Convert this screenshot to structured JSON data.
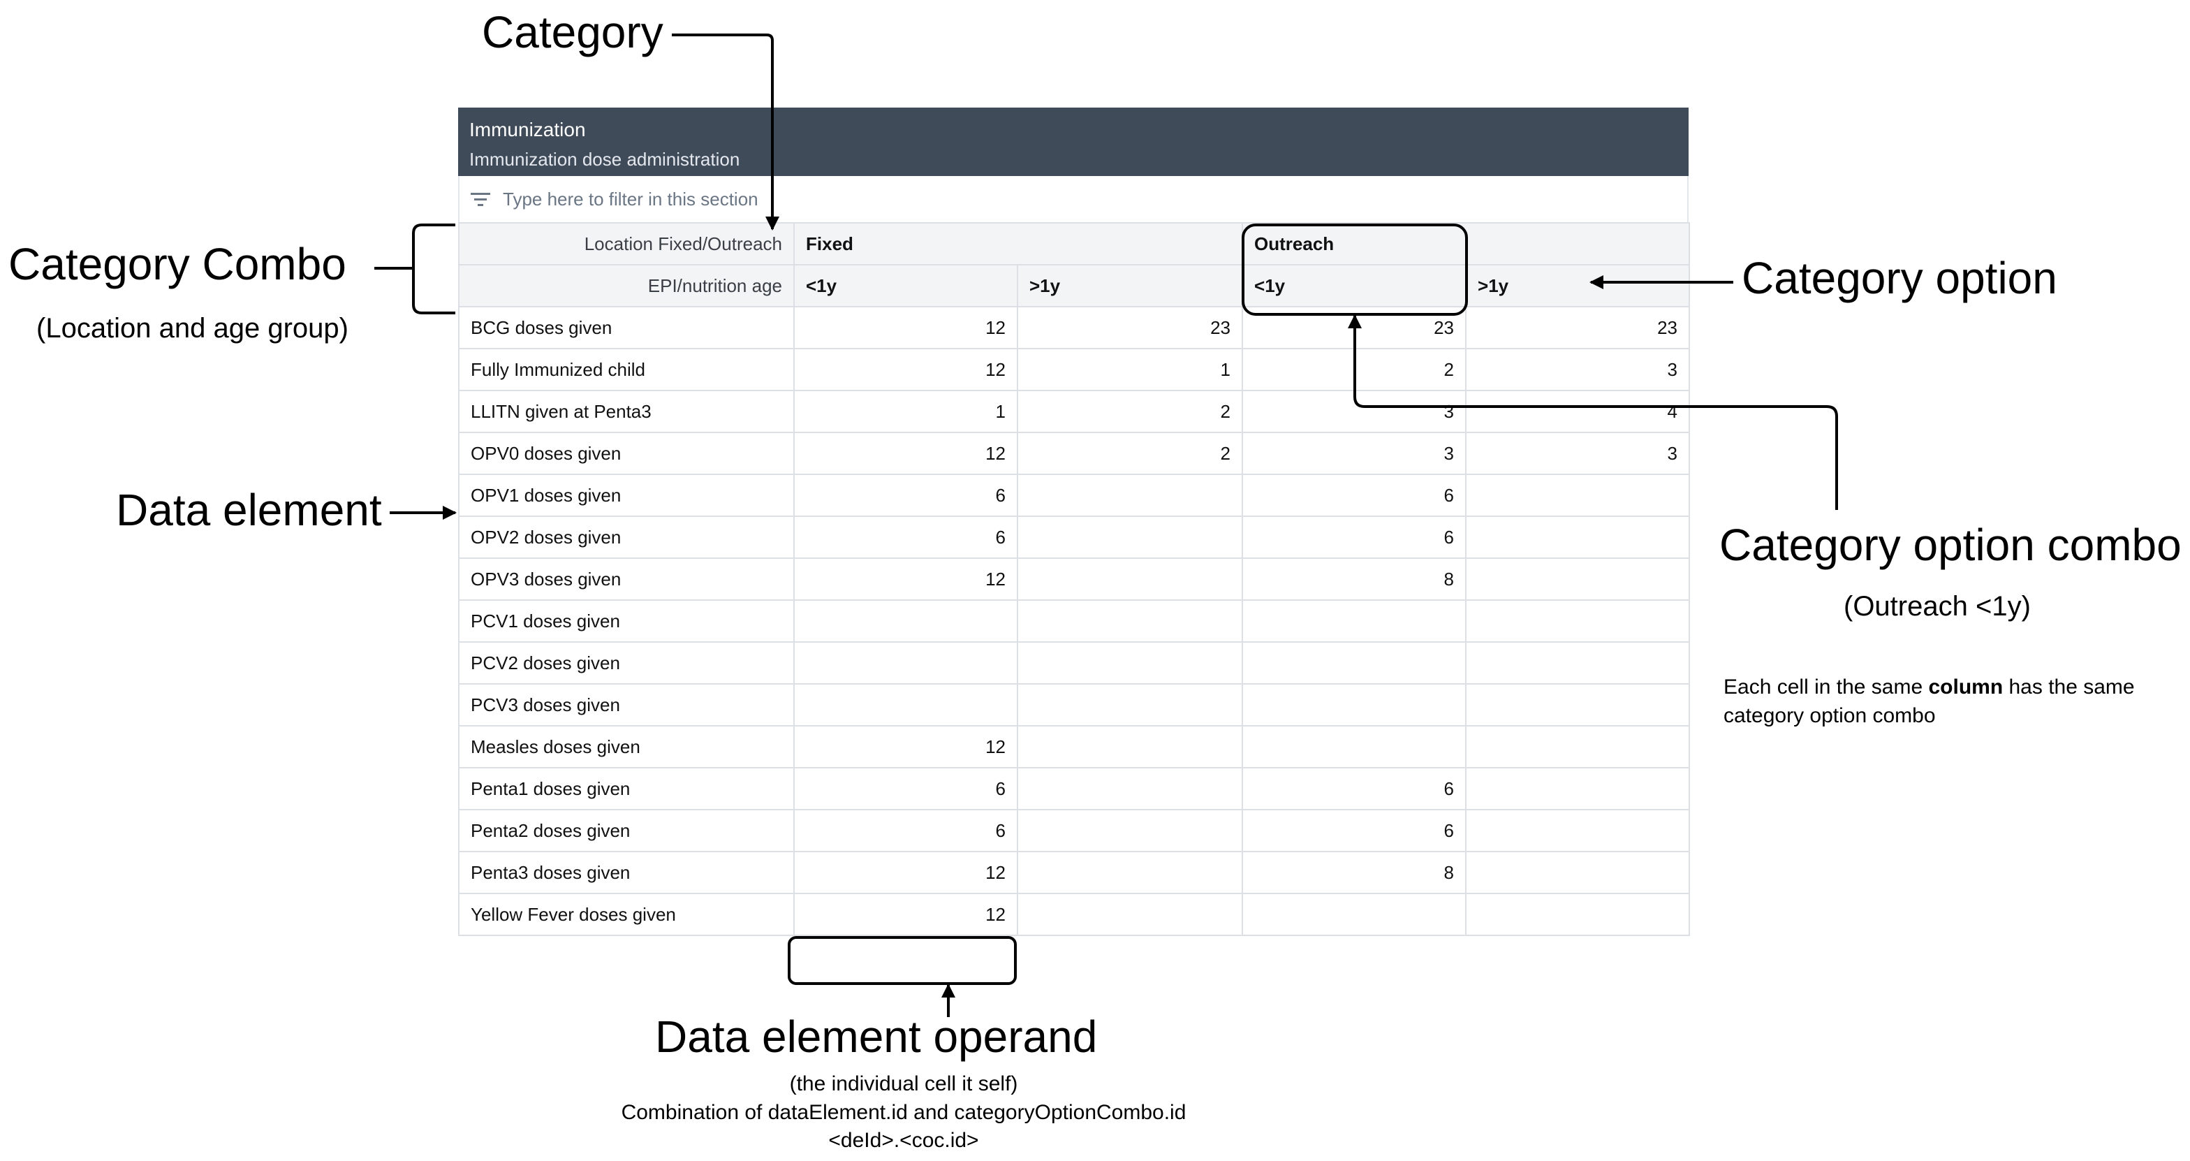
{
  "section": {
    "title": "Immunization",
    "description": "Immunization dose administration",
    "filter_placeholder": "Type here to filter in this section"
  },
  "category_headers": {
    "location_label": "Location Fixed/Outreach",
    "age_label": "EPI/nutrition age",
    "location_options": [
      "Fixed",
      "Outreach"
    ],
    "age_options": [
      "<1y",
      ">1y",
      "<1y",
      ">1y"
    ]
  },
  "rows": [
    {
      "name": "BCG doses given",
      "values": [
        "12",
        "23",
        "23",
        "23"
      ]
    },
    {
      "name": "Fully Immunized child",
      "values": [
        "12",
        "1",
        "2",
        "3"
      ]
    },
    {
      "name": "LLITN given at Penta3",
      "values": [
        "1",
        "2",
        "3",
        "4"
      ]
    },
    {
      "name": "OPV0 doses given",
      "values": [
        "12",
        "2",
        "3",
        "3"
      ]
    },
    {
      "name": "OPV1 doses given",
      "values": [
        "6",
        "",
        "6",
        ""
      ]
    },
    {
      "name": "OPV2 doses given",
      "values": [
        "6",
        "",
        "6",
        ""
      ]
    },
    {
      "name": "OPV3 doses given",
      "values": [
        "12",
        "",
        "8",
        ""
      ]
    },
    {
      "name": "PCV1 doses given",
      "values": [
        "",
        "",
        "",
        ""
      ]
    },
    {
      "name": "PCV2 doses given",
      "values": [
        "",
        "",
        "",
        ""
      ]
    },
    {
      "name": "PCV3 doses given",
      "values": [
        "",
        "",
        "",
        ""
      ]
    },
    {
      "name": "Measles doses given",
      "values": [
        "12",
        "",
        "",
        ""
      ]
    },
    {
      "name": "Penta1 doses given",
      "values": [
        "6",
        "",
        "6",
        ""
      ]
    },
    {
      "name": "Penta2 doses given",
      "values": [
        "6",
        "",
        "6",
        ""
      ]
    },
    {
      "name": "Penta3 doses given",
      "values": [
        "12",
        "",
        "8",
        ""
      ]
    },
    {
      "name": "Yellow Fever doses given",
      "values": [
        "12",
        "",
        "",
        ""
      ]
    }
  ],
  "annotations": {
    "category": "Category",
    "category_combo": "Category Combo",
    "category_combo_sub": "(Location and age group)",
    "data_element": "Data element",
    "category_option": "Category option",
    "category_option_combo": "Category option combo",
    "category_option_combo_sub": "(Outreach <1y)",
    "column_note_pre": "Each cell in the same ",
    "column_note_bold": "column",
    "column_note_post": " has the same",
    "column_note_line2": "category option combo",
    "operand": "Data element operand",
    "operand_line1": "(the individual cell it self)",
    "operand_line2": "Combination of dataElement.id and categoryOptionCombo.id",
    "operand_line3": "<deId>.<coc.id>"
  }
}
